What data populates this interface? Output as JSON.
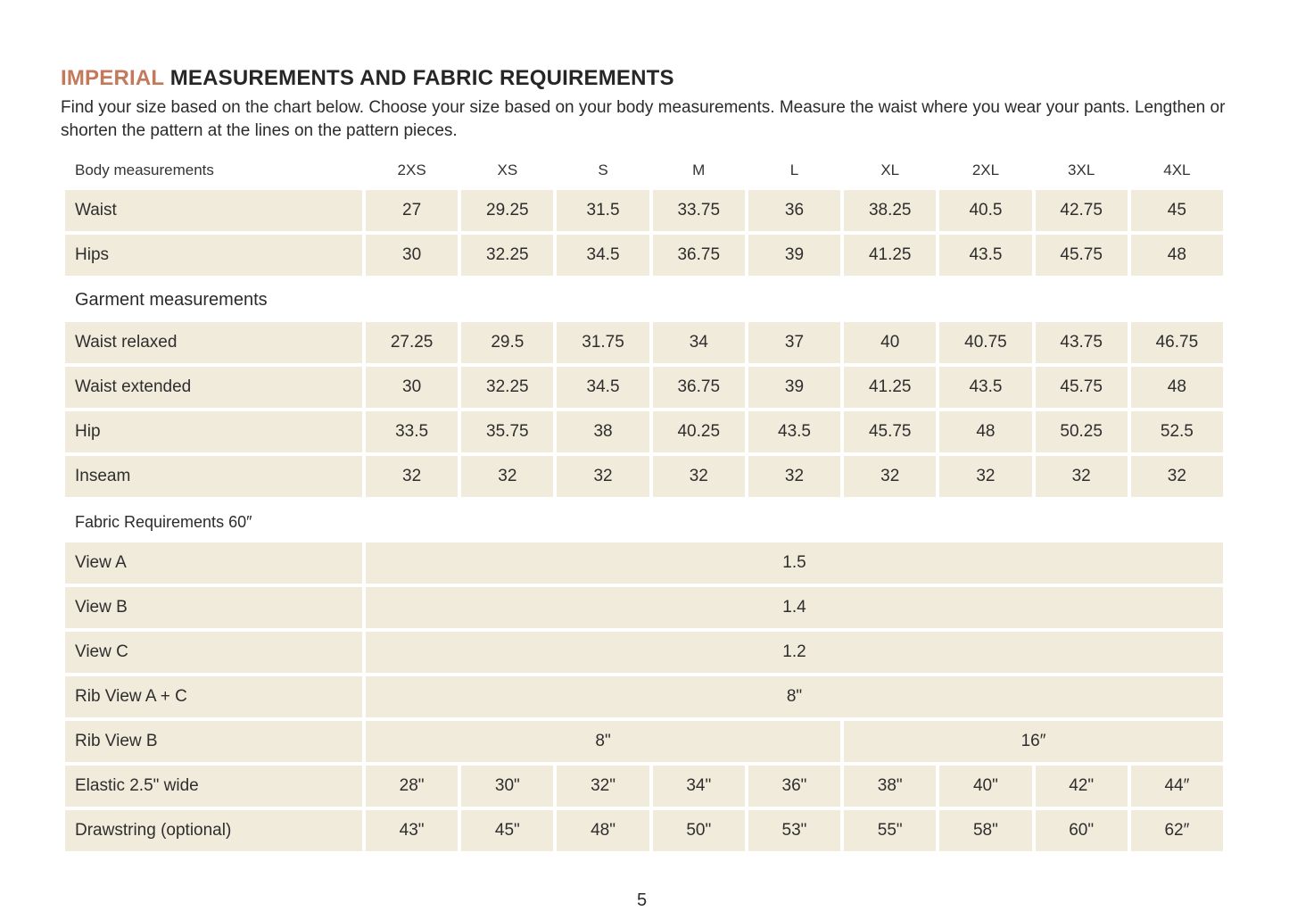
{
  "colors": {
    "accent": "#c47a5a",
    "cell_background": "#f1ebdb",
    "text": "#2e2e2e"
  },
  "page": {
    "title_accent": "IMPERIAL",
    "title_rest": " MEASUREMENTS AND FABRIC REQUIREMENTS",
    "intro": "Find your size based on the chart below. Choose your size based on your body measurements. Measure the waist where you wear your pants. Lengthen or shorten the pattern at the lines on the pattern pieces.",
    "page_number": "5"
  },
  "table": {
    "header_label": "Body measurements",
    "sizes": [
      "2XS",
      "XS",
      "S",
      "M",
      "L",
      "XL",
      "2XL",
      "3XL",
      "4XL"
    ],
    "body_rows": [
      {
        "label": "Waist",
        "values": [
          "27",
          "29.25",
          "31.5",
          "33.75",
          "36",
          "38.25",
          "40.5",
          "42.75",
          "45"
        ]
      },
      {
        "label": "Hips",
        "values": [
          "30",
          "32.25",
          "34.5",
          "36.75",
          "39",
          "41.25",
          "43.5",
          "45.75",
          "48"
        ]
      }
    ],
    "garment_section_label": "Garment measurements",
    "garment_rows": [
      {
        "label": "Waist relaxed",
        "values": [
          "27.25",
          "29.5",
          "31.75",
          "34",
          "37",
          "40",
          "40.75",
          "43.75",
          "46.75"
        ]
      },
      {
        "label": "Waist extended",
        "values": [
          "30",
          "32.25",
          "34.5",
          "36.75",
          "39",
          "41.25",
          "43.5",
          "45.75",
          "48"
        ]
      },
      {
        "label": "Hip",
        "values": [
          "33.5",
          "35.75",
          "38",
          "40.25",
          "43.5",
          "45.75",
          "48",
          "50.25",
          "52.5"
        ]
      },
      {
        "label": "Inseam",
        "values": [
          "32",
          "32",
          "32",
          "32",
          "32",
          "32",
          "32",
          "32",
          "32"
        ]
      }
    ],
    "fabric_section_label": "Fabric Requirements 60″",
    "fabric_span_rows": [
      {
        "label": "View A",
        "value": "1.5"
      },
      {
        "label": "View B",
        "value": "1.4"
      },
      {
        "label": "View C",
        "value": "1.2"
      },
      {
        "label": "Rib View A + C",
        "value": "8\""
      }
    ],
    "rib_view_b": {
      "label": "Rib View B",
      "value_left": "8\"",
      "value_right": "16″"
    },
    "fabric_rows": [
      {
        "label": "Elastic 2.5\" wide",
        "values": [
          "28\"",
          "30\"",
          "32\"",
          "34\"",
          "36\"",
          "38\"",
          "40\"",
          "42\"",
          "44″"
        ]
      },
      {
        "label": "Drawstring (optional)",
        "values": [
          "43\"",
          "45\"",
          "48\"",
          "50\"",
          "53\"",
          "55\"",
          "58\"",
          "60\"",
          "62″"
        ]
      }
    ]
  }
}
